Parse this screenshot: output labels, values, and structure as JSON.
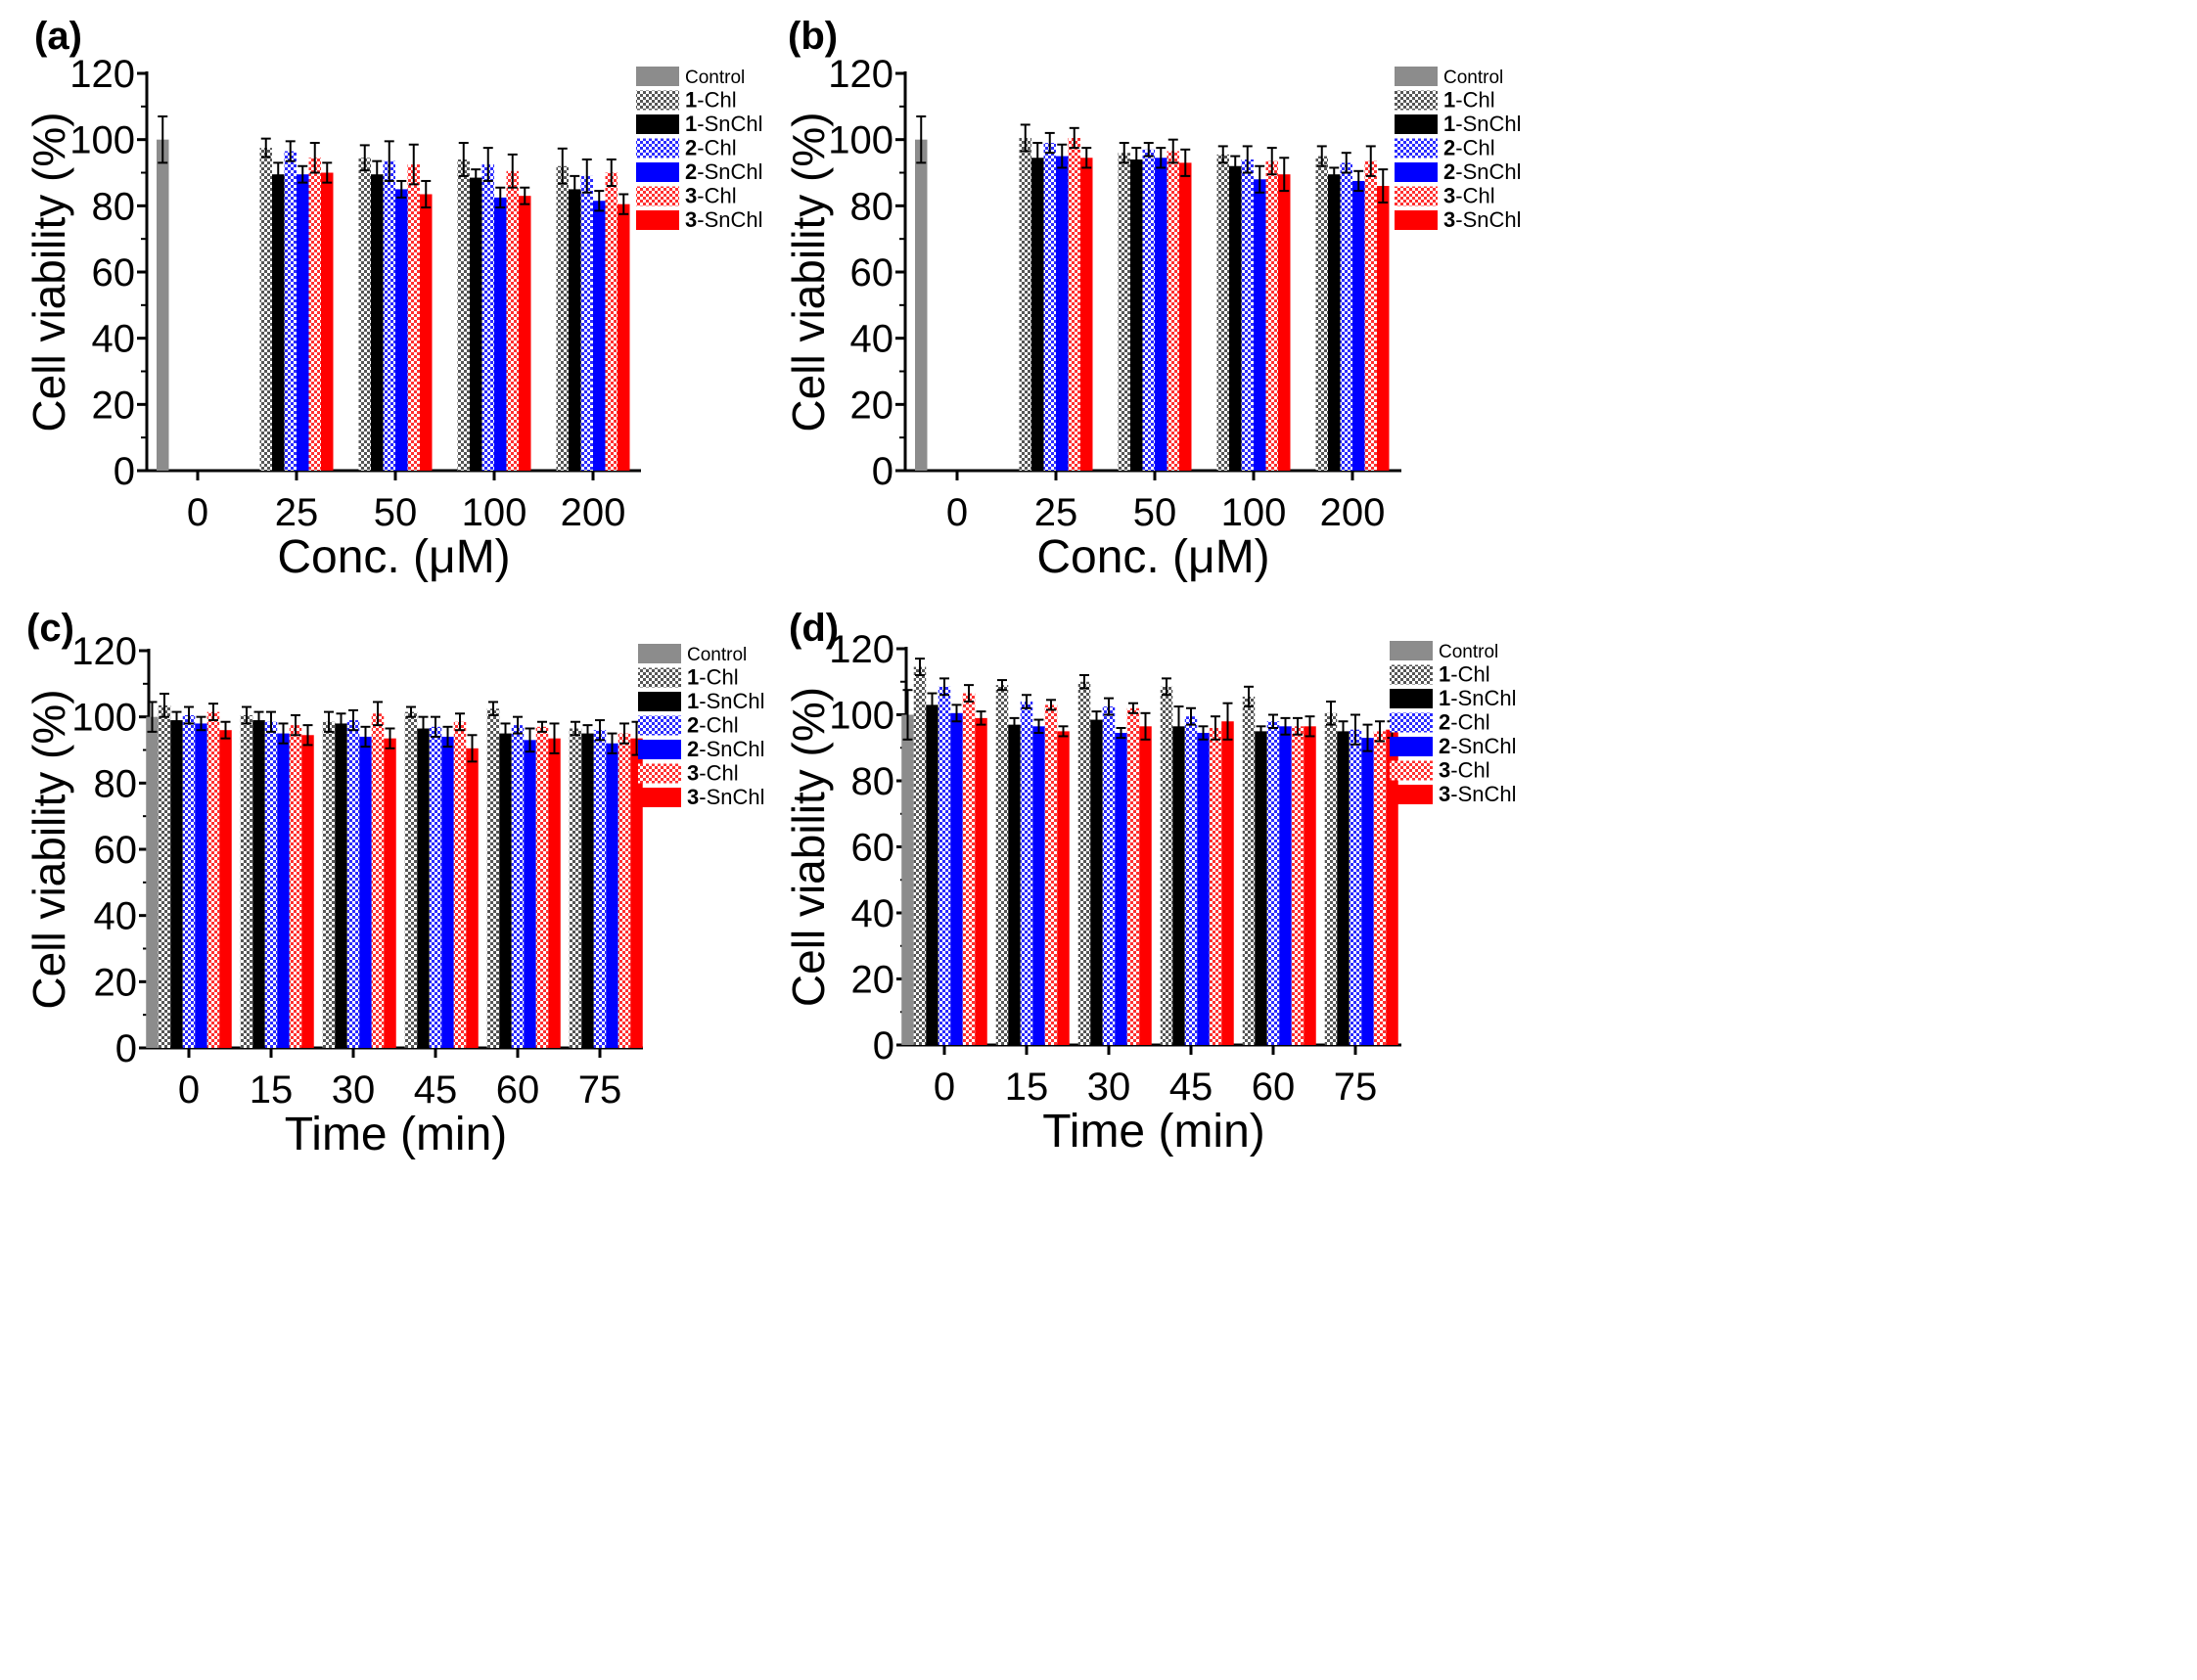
{
  "figure_note": "Cell viability bar charts, four panels",
  "legend_entries": [
    {
      "num": "",
      "name": "Control",
      "color": "#8c8c8c",
      "pattern": "solid"
    },
    {
      "num": "1",
      "name": "-Chl",
      "color": "#555555",
      "pattern": "check"
    },
    {
      "num": "1",
      "name": "-SnChl",
      "color": "#000000",
      "pattern": "solid"
    },
    {
      "num": "2",
      "name": "-Chl",
      "color": "#2b2bff",
      "pattern": "check"
    },
    {
      "num": "2",
      "name": "-SnChl",
      "color": "#0000ff",
      "pattern": "solid"
    },
    {
      "num": "3",
      "name": "-Chl",
      "color": "#ff3030",
      "pattern": "check"
    },
    {
      "num": "3",
      "name": "-SnChl",
      "color": "#ff0000",
      "pattern": "solid"
    }
  ],
  "chart_data": [
    {
      "panel": "(a)",
      "type": "bar",
      "xlabel": "Conc. (μM)",
      "ylabel": "Cell viability (%)",
      "ylim": [
        0,
        120
      ],
      "yticks": [
        0,
        20,
        40,
        60,
        80,
        100,
        120
      ],
      "categories": [
        "0",
        "25",
        "50",
        "100",
        "200"
      ],
      "control": {
        "value": 100,
        "err": 7
      },
      "series": [
        {
          "name": "1-Chl",
          "values": [
            null,
            97.5,
            94.5,
            94,
            92
          ],
          "err": [
            null,
            2.8,
            3.8,
            5,
            5.3
          ]
        },
        {
          "name": "1-SnChl",
          "values": [
            null,
            89.5,
            89.5,
            88.5,
            85
          ],
          "err": [
            null,
            3.5,
            4,
            2.5,
            4
          ]
        },
        {
          "name": "2-Chl",
          "values": [
            null,
            96.5,
            93.5,
            92.5,
            89
          ],
          "err": [
            null,
            3,
            6,
            5,
            5
          ]
        },
        {
          "name": "2-SnChl",
          "values": [
            null,
            89.5,
            85,
            82.5,
            81.5
          ],
          "err": [
            null,
            2.5,
            2.5,
            3,
            3
          ]
        },
        {
          "name": "3-Chl",
          "values": [
            null,
            94.5,
            92.5,
            90.5,
            90
          ],
          "err": [
            null,
            4.5,
            6,
            5,
            4
          ]
        },
        {
          "name": "3-SnChl",
          "values": [
            null,
            90,
            83.5,
            83,
            80.5
          ],
          "err": [
            null,
            3,
            4,
            2.5,
            3
          ]
        }
      ]
    },
    {
      "panel": "(b)",
      "type": "bar",
      "xlabel": "Conc. (μM)",
      "ylabel": "Cell viability (%)",
      "ylim": [
        0,
        120
      ],
      "yticks": [
        0,
        20,
        40,
        60,
        80,
        100,
        120
      ],
      "categories": [
        "0",
        "25",
        "50",
        "100",
        "200"
      ],
      "control": {
        "value": 100,
        "err": 7
      },
      "series": [
        {
          "name": "1-Chl",
          "values": [
            null,
            100.5,
            96,
            95.5,
            95
          ],
          "err": [
            null,
            4,
            3,
            2.5,
            3
          ]
        },
        {
          "name": "1-SnChl",
          "values": [
            null,
            94.5,
            94,
            92,
            89.5
          ],
          "err": [
            null,
            4.5,
            3.5,
            3,
            2
          ]
        },
        {
          "name": "2-Chl",
          "values": [
            null,
            99,
            97,
            94,
            93
          ],
          "err": [
            null,
            3,
            2,
            4,
            3
          ]
        },
        {
          "name": "2-SnChl",
          "values": [
            null,
            95,
            94.5,
            88,
            87.5
          ],
          "err": [
            null,
            3.5,
            3,
            4,
            3
          ]
        },
        {
          "name": "3-Chl",
          "values": [
            null,
            100.5,
            96.5,
            93.5,
            93.5
          ],
          "err": [
            null,
            3,
            3.5,
            4,
            4.5
          ]
        },
        {
          "name": "3-SnChl",
          "values": [
            null,
            94.5,
            93,
            89.5,
            86
          ],
          "err": [
            null,
            3,
            4,
            5,
            5
          ]
        }
      ]
    },
    {
      "panel": "(c)",
      "type": "bar",
      "xlabel": "Time (min)",
      "ylabel": "Cell viability (%)",
      "ylim": [
        0,
        120
      ],
      "yticks": [
        0,
        20,
        40,
        60,
        80,
        100,
        120
      ],
      "categories": [
        "0",
        "15",
        "30",
        "45",
        "60",
        "75"
      ],
      "control": {
        "value": 100,
        "err": 4.5
      },
      "series": [
        {
          "name": "1-Chl",
          "values": [
            103.5,
            100.5,
            98.5,
            101.5,
            102.5,
            96.5
          ],
          "err": [
            3.5,
            2.5,
            3,
            1.5,
            2,
            2
          ]
        },
        {
          "name": "1-SnChl",
          "values": [
            99,
            99,
            98,
            96.5,
            95,
            95
          ],
          "err": [
            2.5,
            2.5,
            3,
            3.5,
            3,
            2.5
          ]
        },
        {
          "name": "2-Chl",
          "values": [
            100.5,
            98.5,
            99,
            97,
            97.5,
            96
          ],
          "err": [
            2.5,
            3,
            3,
            3,
            2.5,
            3
          ]
        },
        {
          "name": "2-SnChl",
          "values": [
            98,
            95,
            94,
            94,
            93,
            92
          ],
          "err": [
            2,
            3,
            3,
            3,
            3.5,
            3
          ]
        },
        {
          "name": "3-Chl",
          "values": [
            101.5,
            97.5,
            101,
            98.5,
            97,
            95
          ],
          "err": [
            2.5,
            3,
            3.5,
            2.5,
            1.5,
            3
          ]
        },
        {
          "name": "3-SnChl",
          "values": [
            96,
            94.5,
            93.5,
            90.5,
            93.5,
            93.5
          ],
          "err": [
            2.5,
            3,
            3,
            4,
            4.5,
            5
          ]
        }
      ]
    },
    {
      "panel": "(d)",
      "type": "bar",
      "xlabel": "Time (min)",
      "ylabel": "Cell viability (%)",
      "ylim": [
        0,
        120
      ],
      "yticks": [
        0,
        20,
        40,
        60,
        80,
        100,
        120
      ],
      "categories": [
        "0",
        "15",
        "30",
        "45",
        "60",
        "75"
      ],
      "control": {
        "value": 100,
        "err": 7.5
      },
      "series": [
        {
          "name": "1-Chl",
          "values": [
            114.5,
            109,
            110,
            108.5,
            105.5,
            100.5
          ],
          "err": [
            2.5,
            1.5,
            2,
            2.5,
            3,
            3.5
          ]
        },
        {
          "name": "1-SnChl",
          "values": [
            103,
            97,
            98.5,
            96.5,
            95,
            95
          ],
          "err": [
            3.5,
            2,
            2.5,
            6,
            1.5,
            3
          ]
        },
        {
          "name": "2-Chl",
          "values": [
            108.5,
            104,
            102.5,
            99.5,
            98,
            95.5
          ],
          "err": [
            2.5,
            2,
            2.5,
            2.5,
            2,
            4.5
          ]
        },
        {
          "name": "2-SnChl",
          "values": [
            100.5,
            96.5,
            94.5,
            94.5,
            96.5,
            93
          ],
          "err": [
            2.5,
            2,
            1.5,
            2,
            2.5,
            4
          ]
        },
        {
          "name": "3-Chl",
          "values": [
            106.5,
            103,
            102,
            96,
            96.5,
            95
          ],
          "err": [
            2.5,
            1.5,
            1.5,
            3.5,
            2.5,
            3
          ]
        },
        {
          "name": "3-SnChl",
          "values": [
            99,
            95,
            96.5,
            98,
            96.5,
            95.5
          ],
          "err": [
            2,
            1.5,
            4,
            5.5,
            3,
            2.5
          ]
        }
      ]
    }
  ]
}
